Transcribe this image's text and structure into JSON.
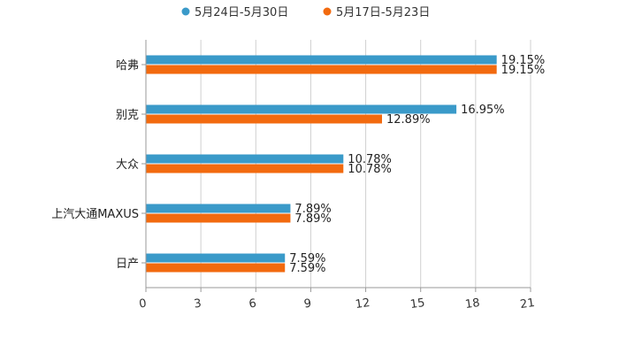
{
  "chart_data": {
    "type": "bar",
    "orientation": "horizontal",
    "categories": [
      "哈弗",
      "别克",
      "大众",
      "上汽大通MAXUS",
      "日产"
    ],
    "series": [
      {
        "name": "5月24日-5月30日",
        "color": "#3a9ac9",
        "values": [
          19.15,
          16.95,
          10.78,
          7.89,
          7.59
        ],
        "labels": [
          "19.15%",
          "16.95%",
          "10.78%",
          "7.89%",
          "7.59%"
        ]
      },
      {
        "name": "5月17日-5月23日",
        "color": "#f26a0f",
        "values": [
          19.15,
          12.89,
          10.78,
          7.89,
          7.59
        ],
        "labels": [
          "19.15%",
          "12.89%",
          "10.78%",
          "7.89%",
          "7.59%"
        ]
      }
    ],
    "xlim": [
      0,
      21
    ],
    "xticks": [
      0,
      3,
      6,
      9,
      12,
      15,
      18,
      21
    ],
    "xtick_labels": [
      "0",
      "3",
      "6",
      "9",
      "12",
      "15",
      "18",
      "21"
    ],
    "grid": true,
    "legend_position": "top-center",
    "title": "",
    "xlabel": "",
    "ylabel": ""
  }
}
